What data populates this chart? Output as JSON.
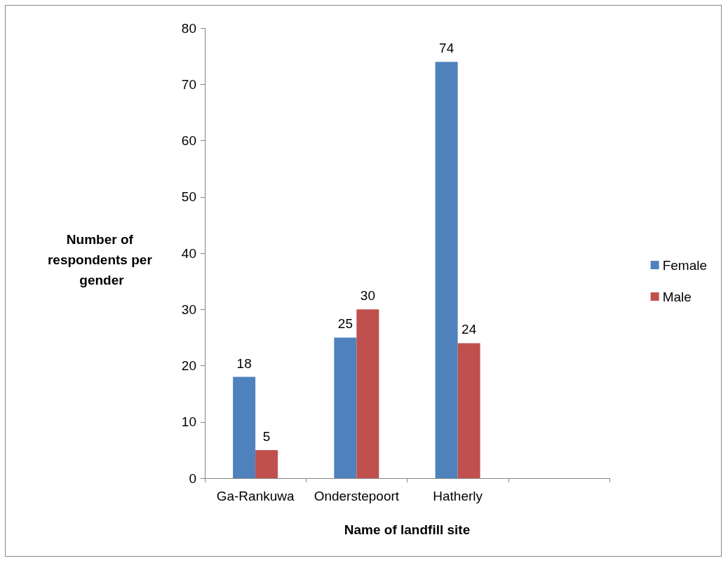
{
  "chart_data": {
    "type": "bar",
    "xlabel": "Name of landfill site",
    "ylabel": "Number of respondents per gender",
    "categories": [
      "Ga-Rankuwa",
      "Onderstepoort",
      "Hatherly",
      null
    ],
    "series": [
      {
        "name": "Female",
        "color": "#4f81bd",
        "values": [
          18,
          25,
          74,
          null
        ]
      },
      {
        "name": "Male",
        "color": "#c0504d",
        "values": [
          5,
          30,
          24,
          null
        ]
      }
    ],
    "ylim": [
      0,
      80
    ],
    "yticks": [
      0,
      10,
      20,
      30,
      40,
      50,
      60,
      70,
      80
    ],
    "grid": false,
    "legend": "right",
    "data_labels": true
  }
}
